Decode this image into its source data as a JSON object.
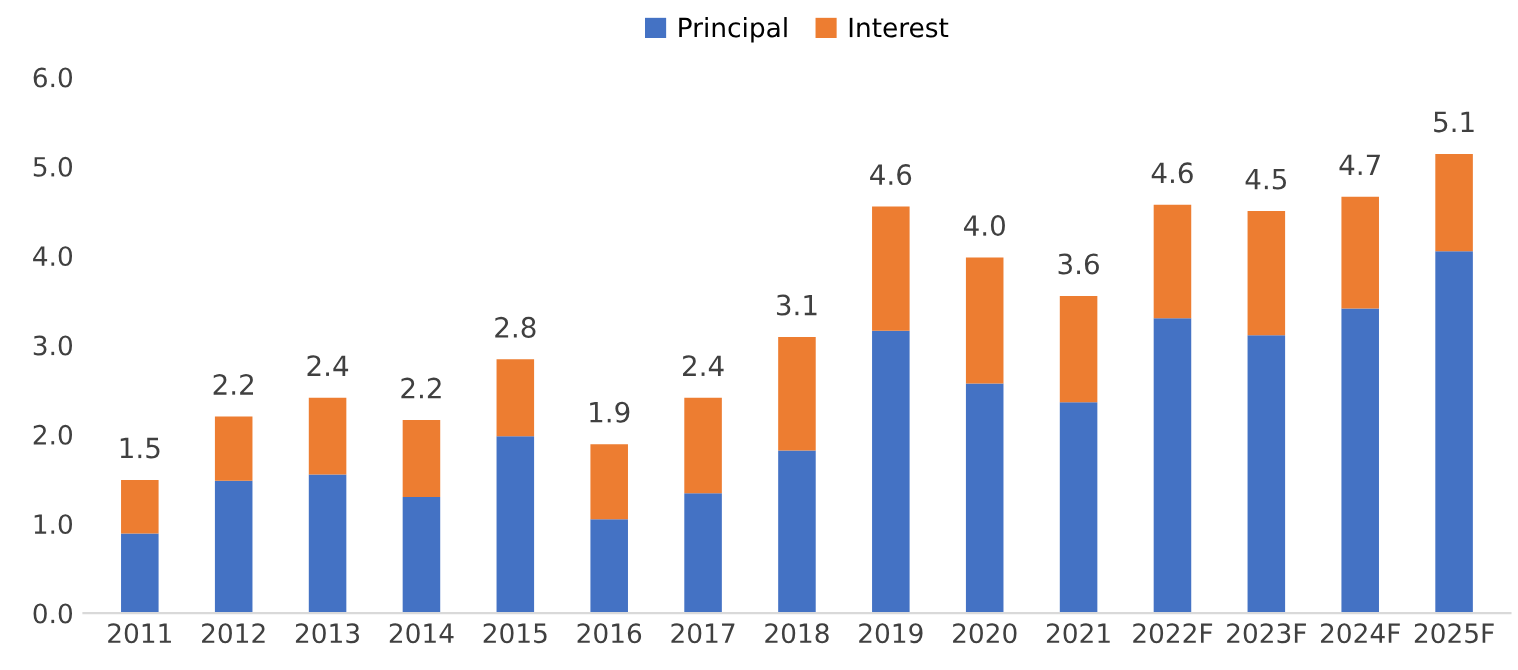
{
  "chart_data": {
    "type": "bar",
    "stacked": true,
    "categories": [
      "2011",
      "2012",
      "2013",
      "2014",
      "2015",
      "2016",
      "2017",
      "2018",
      "2019",
      "2020",
      "2021",
      "2022F",
      "2023F",
      "2024F",
      "2025F"
    ],
    "series": [
      {
        "name": "Principal",
        "color": "#4472c4",
        "values": [
          0.89,
          1.48,
          1.55,
          1.3,
          1.98,
          1.05,
          1.34,
          1.82,
          3.16,
          2.57,
          2.36,
          3.3,
          3.11,
          3.41,
          4.05
        ]
      },
      {
        "name": "Interest",
        "color": "#ed7d31",
        "values": [
          0.6,
          0.72,
          0.86,
          0.86,
          0.86,
          0.84,
          1.07,
          1.27,
          1.39,
          1.41,
          1.19,
          1.27,
          1.39,
          1.25,
          1.09
        ]
      }
    ],
    "totals": [
      "1.5",
      "2.2",
      "2.4",
      "2.2",
      "2.8",
      "1.9",
      "2.4",
      "3.1",
      "4.6",
      "4.0",
      "3.6",
      "4.6",
      "4.5",
      "4.7",
      "5.1"
    ],
    "ylim": [
      0,
      6
    ],
    "yticks": [
      {
        "value": 0,
        "label": "0.0"
      },
      {
        "value": 1,
        "label": "1.0"
      },
      {
        "value": 2,
        "label": "2.0"
      },
      {
        "value": 3,
        "label": "3.0"
      },
      {
        "value": 4,
        "label": "4.0"
      },
      {
        "value": 5,
        "label": "5.0"
      },
      {
        "value": 6,
        "label": "6.0"
      }
    ],
    "grid": false,
    "legend": "top"
  }
}
